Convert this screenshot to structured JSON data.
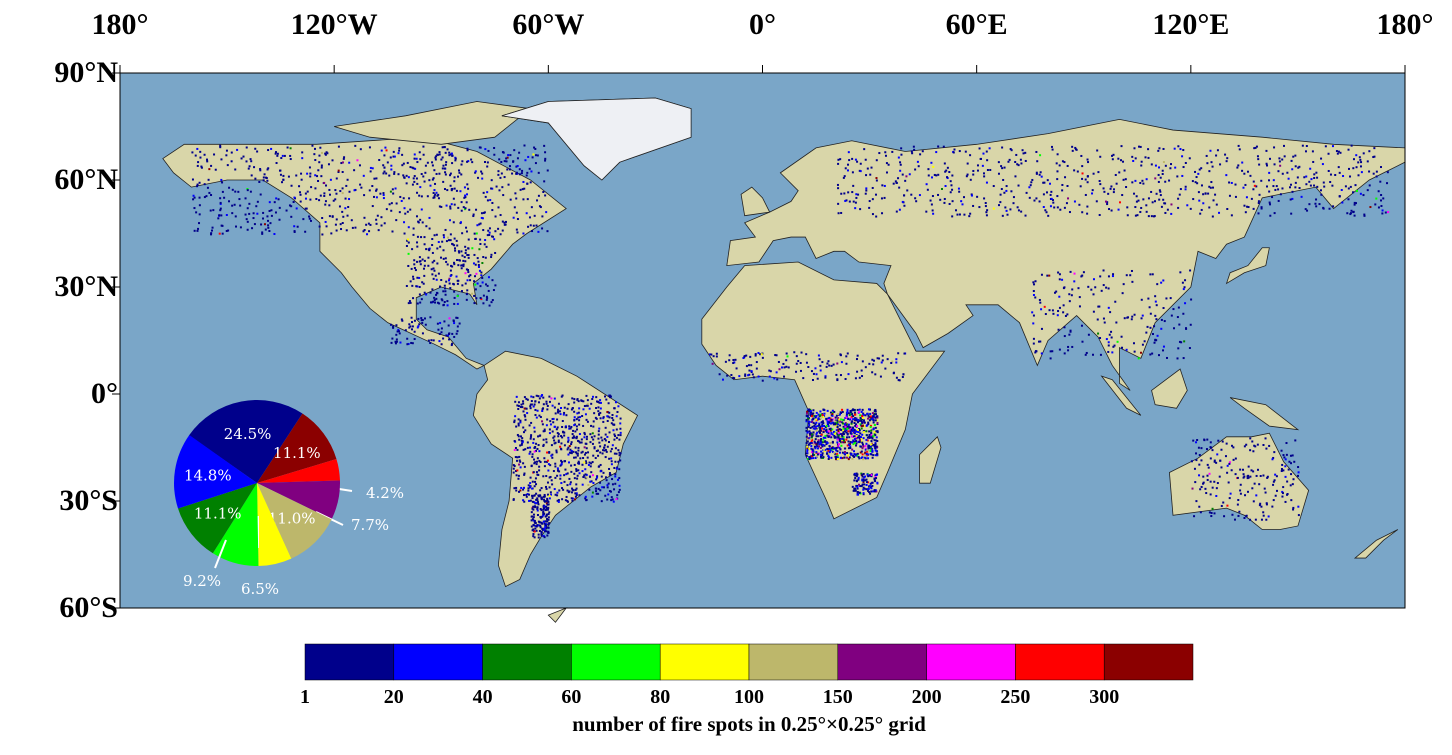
{
  "map": {
    "lon_labels": [
      "180°",
      "120°W",
      "60°W",
      "0°",
      "60°E",
      "120°E",
      "180°"
    ],
    "lat_labels": [
      "90°N",
      "60°N",
      "30°N",
      "0°",
      "30°S",
      "60°S"
    ],
    "ocean_color": "#7aa6c8",
    "land_color": "#d9d6a9"
  },
  "pie": {
    "slices": [
      {
        "label": "24.5%",
        "value": 24.5,
        "color": "#00008b"
      },
      {
        "label": "11.1%",
        "value": 11.1,
        "color": "#8b0000"
      },
      {
        "label": "4.2%",
        "value": 4.2,
        "color": "#ff0000"
      },
      {
        "label": "7.7%",
        "value": 7.7,
        "color": "#800080"
      },
      {
        "label": "11.0%",
        "value": 11.0,
        "color": "#bdb76b"
      },
      {
        "label": "6.5%",
        "value": 6.5,
        "color": "#ffff00"
      },
      {
        "label": "9.2%",
        "value": 9.2,
        "color": "#00ff00"
      },
      {
        "label": "11.1%",
        "value": 11.1,
        "color": "#008000"
      },
      {
        "label": "14.8%",
        "value": 14.8,
        "color": "#0000ff"
      }
    ]
  },
  "colorbar": {
    "colors": [
      "#00008b",
      "#0000ff",
      "#008000",
      "#00ff00",
      "#ffff00",
      "#bdb76b",
      "#800080",
      "#ff00ff",
      "#ff0000",
      "#8b0000"
    ],
    "ticks": [
      "1",
      "20",
      "40",
      "60",
      "80",
      "100",
      "150",
      "200",
      "250",
      "300"
    ],
    "title": "number of fire spots in 0.25°×0.25° grid"
  }
}
